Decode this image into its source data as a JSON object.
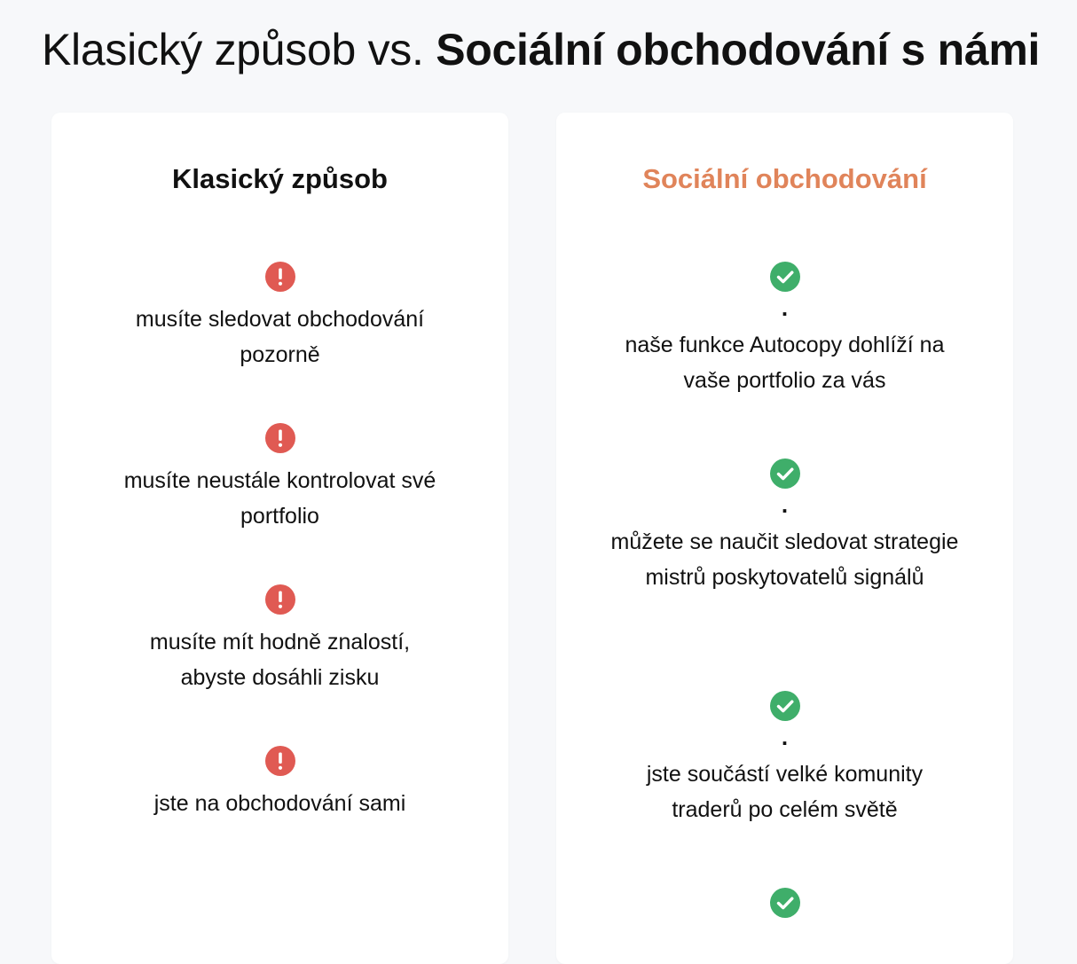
{
  "heading": {
    "prefix": "Klasický způsob vs.",
    "strong": "Sociální obchodování s námi"
  },
  "classic": {
    "title": "Klasický způsob",
    "icon": "exclamation-circle-icon",
    "icon_color": "#e05a53",
    "items": [
      {
        "text": "musíte sledovat obchodování pozorně"
      },
      {
        "text": "musíte neustále kontrolovat své portfolio"
      },
      {
        "text": "musíte mít hodně znalostí, abyste dosáhli zisku"
      },
      {
        "text": "jste na obchodování sami"
      }
    ]
  },
  "social": {
    "title": "Sociální obchodování",
    "title_color": "#e0845a",
    "icon": "check-circle-icon",
    "icon_color": "#3fae6a",
    "items": [
      {
        "dot": ".",
        "text": "naše funkce Autocopy dohlíží na vaše portfolio za vás"
      },
      {
        "dot": ".",
        "text": "můžete se naučit sledovat strategie mistrů poskytovatelů signálů"
      },
      {
        "dot": ".",
        "text": "jste součástí velké komunity traderů po celém světě"
      },
      {
        "dot": "",
        "text": ""
      }
    ]
  }
}
